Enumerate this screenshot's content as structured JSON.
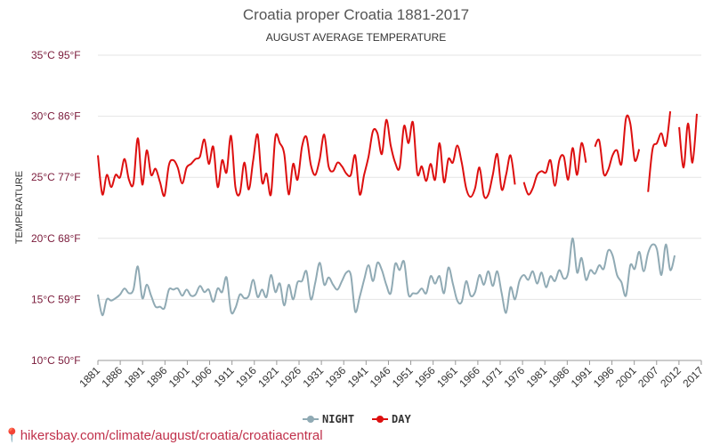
{
  "chart_data": {
    "type": "line",
    "title": "Croatia proper Croatia 1881-2017",
    "subtitle": "AUGUST AVERAGE TEMPERATURE",
    "ylabel": "TEMPERATURE",
    "ylim": [
      10,
      35
    ],
    "yticks": [
      {
        "value": 10,
        "label": "10°C 50°F"
      },
      {
        "value": 15,
        "label": "15°C 59°F"
      },
      {
        "value": 20,
        "label": "20°C 68°F"
      },
      {
        "value": 25,
        "label": "25°C 77°F"
      },
      {
        "value": 30,
        "label": "30°C 86°F"
      },
      {
        "value": 35,
        "label": "35°C 95°F"
      }
    ],
    "xlim": [
      1881,
      2017
    ],
    "xticks": [
      "1881",
      "1886",
      "1891",
      "1896",
      "1901",
      "1906",
      "1911",
      "1916",
      "1921",
      "1926",
      "1931",
      "1936",
      "1941",
      "1946",
      "1951",
      "1956",
      "1961",
      "1966",
      "1971",
      "1976",
      "1981",
      "1986",
      "1991",
      "1996",
      "2001",
      "2007",
      "2012",
      "2017"
    ],
    "series": [
      {
        "name": "NIGHT",
        "color": "#90aab4",
        "points": [
          [
            1881,
            15.4
          ],
          [
            1882,
            13.7
          ],
          [
            1883,
            15.0
          ],
          [
            1884,
            14.9
          ],
          [
            1885,
            15.1
          ],
          [
            1886,
            15.4
          ],
          [
            1887,
            15.9
          ],
          [
            1888,
            15.5
          ],
          [
            1889,
            15.8
          ],
          [
            1890,
            17.7
          ],
          [
            1891,
            15.1
          ],
          [
            1892,
            16.2
          ],
          [
            1893,
            15.3
          ],
          [
            1894,
            14.4
          ],
          [
            1895,
            14.4
          ],
          [
            1896,
            14.3
          ],
          [
            1897,
            15.8
          ],
          [
            1898,
            15.8
          ],
          [
            1899,
            15.9
          ],
          [
            1900,
            15.3
          ],
          [
            1901,
            15.8
          ],
          [
            1902,
            15.3
          ],
          [
            1903,
            15.4
          ],
          [
            1904,
            16.1
          ],
          [
            1905,
            15.6
          ],
          [
            1906,
            15.8
          ],
          [
            1907,
            14.8
          ],
          [
            1908,
            15.9
          ],
          [
            1909,
            15.6
          ],
          [
            1910,
            16.8
          ],
          [
            1911,
            14.0
          ],
          [
            1912,
            14.3
          ],
          [
            1913,
            15.4
          ],
          [
            1914,
            15.1
          ],
          [
            1915,
            15.3
          ],
          [
            1916,
            16.6
          ],
          [
            1917,
            15.2
          ],
          [
            1918,
            15.8
          ],
          [
            1919,
            15.2
          ],
          [
            1920,
            17.0
          ],
          [
            1921,
            15.6
          ],
          [
            1922,
            16.3
          ],
          [
            1923,
            14.5
          ],
          [
            1924,
            16.2
          ],
          [
            1925,
            15.0
          ],
          [
            1926,
            16.4
          ],
          [
            1927,
            16.5
          ],
          [
            1928,
            17.3
          ],
          [
            1929,
            15.0
          ],
          [
            1930,
            16.4
          ],
          [
            1931,
            18.0
          ],
          [
            1932,
            16.2
          ],
          [
            1933,
            16.8
          ],
          [
            1934,
            16.2
          ],
          [
            1935,
            15.8
          ],
          [
            1936,
            16.5
          ],
          [
            1937,
            17.2
          ],
          [
            1938,
            17.0
          ],
          [
            1939,
            14.0
          ],
          [
            1940,
            15.2
          ],
          [
            1941,
            16.6
          ],
          [
            1942,
            17.8
          ],
          [
            1943,
            16.5
          ],
          [
            1944,
            18.0
          ],
          [
            1945,
            17.4
          ],
          [
            1946,
            16.2
          ],
          [
            1947,
            15.5
          ],
          [
            1948,
            17.9
          ],
          [
            1949,
            17.4
          ],
          [
            1950,
            18.1
          ],
          [
            1951,
            15.4
          ],
          [
            1952,
            15.5
          ],
          [
            1953,
            15.5
          ],
          [
            1954,
            15.9
          ],
          [
            1955,
            15.5
          ],
          [
            1956,
            16.9
          ],
          [
            1957,
            16.3
          ],
          [
            1958,
            16.9
          ],
          [
            1959,
            15.5
          ],
          [
            1960,
            17.6
          ],
          [
            1961,
            16.3
          ],
          [
            1962,
            14.9
          ],
          [
            1963,
            14.8
          ],
          [
            1964,
            16.5
          ],
          [
            1965,
            15.3
          ],
          [
            1966,
            15.6
          ],
          [
            1967,
            17.0
          ],
          [
            1968,
            16.2
          ],
          [
            1969,
            17.3
          ],
          [
            1970,
            16.1
          ],
          [
            1971,
            17.3
          ],
          [
            1972,
            15.5
          ],
          [
            1973,
            13.9
          ],
          [
            1974,
            16.0
          ],
          [
            1975,
            15.0
          ],
          [
            1976,
            16.5
          ],
          [
            1977,
            17.0
          ],
          [
            1978,
            16.6
          ],
          [
            1979,
            17.3
          ],
          [
            1980,
            16.3
          ],
          [
            1981,
            17.2
          ],
          [
            1982,
            16.0
          ],
          [
            1983,
            16.9
          ],
          [
            1984,
            16.5
          ],
          [
            1985,
            17.4
          ],
          [
            1986,
            16.7
          ],
          [
            1987,
            17.2
          ],
          [
            1988,
            20.0
          ],
          [
            1989,
            17.2
          ],
          [
            1990,
            18.4
          ],
          [
            1991,
            16.6
          ],
          [
            1992,
            17.4
          ],
          [
            1993,
            17.1
          ],
          [
            1994,
            17.8
          ],
          [
            1995,
            17.5
          ],
          [
            1996,
            19.0
          ],
          [
            1997,
            18.6
          ],
          [
            1998,
            17.0
          ],
          [
            1999,
            16.4
          ],
          [
            2000,
            15.3
          ],
          [
            2001,
            17.8
          ],
          [
            2002,
            17.5
          ],
          [
            2003,
            18.9
          ],
          [
            2004,
            17.3
          ],
          [
            2005,
            18.8
          ],
          [
            2006,
            19.5
          ],
          [
            2007,
            19.1
          ],
          [
            2008,
            17.0
          ],
          [
            2009,
            19.5
          ],
          [
            2010,
            17.4
          ],
          [
            2011,
            18.6
          ]
        ]
      },
      {
        "name": "DAY",
        "color": "#dd0f0f",
        "points": [
          [
            1881,
            26.8
          ],
          [
            1882,
            23.6
          ],
          [
            1883,
            25.2
          ],
          [
            1884,
            24.2
          ],
          [
            1885,
            25.2
          ],
          [
            1886,
            25.0
          ],
          [
            1887,
            26.5
          ],
          [
            1888,
            24.8
          ],
          [
            1889,
            24.5
          ],
          [
            1890,
            28.2
          ],
          [
            1891,
            24.4
          ],
          [
            1892,
            27.2
          ],
          [
            1893,
            25.2
          ],
          [
            1894,
            25.7
          ],
          [
            1895,
            24.6
          ],
          [
            1896,
            23.5
          ],
          [
            1897,
            26.0
          ],
          [
            1898,
            26.4
          ],
          [
            1899,
            25.8
          ],
          [
            1900,
            24.5
          ],
          [
            1901,
            25.8
          ],
          [
            1902,
            26.1
          ],
          [
            1903,
            26.5
          ],
          [
            1904,
            26.7
          ],
          [
            1905,
            28.1
          ],
          [
            1906,
            26.1
          ],
          [
            1907,
            27.5
          ],
          [
            1908,
            24.2
          ],
          [
            1909,
            26.4
          ],
          [
            1910,
            25.4
          ],
          [
            1911,
            28.4
          ],
          [
            1912,
            24.2
          ],
          [
            1913,
            23.7
          ],
          [
            1914,
            26.2
          ],
          [
            1915,
            24.0
          ],
          [
            1916,
            26.4
          ],
          [
            1917,
            28.5
          ],
          [
            1918,
            24.6
          ],
          [
            1919,
            25.3
          ],
          [
            1920,
            23.6
          ],
          [
            1921,
            28.3
          ],
          [
            1922,
            27.8
          ],
          [
            1923,
            26.9
          ],
          [
            1924,
            23.6
          ],
          [
            1925,
            26.1
          ],
          [
            1926,
            24.8
          ],
          [
            1927,
            27.5
          ],
          [
            1928,
            28.3
          ],
          [
            1929,
            26.0
          ],
          [
            1930,
            25.2
          ],
          [
            1931,
            26.5
          ],
          [
            1932,
            28.5
          ],
          [
            1933,
            25.9
          ],
          [
            1934,
            25.5
          ],
          [
            1935,
            26.2
          ],
          [
            1936,
            25.9
          ],
          [
            1937,
            25.3
          ],
          [
            1938,
            25.2
          ],
          [
            1939,
            26.8
          ],
          [
            1940,
            23.6
          ],
          [
            1941,
            25.2
          ],
          [
            1942,
            26.7
          ],
          [
            1943,
            28.8
          ],
          [
            1944,
            28.6
          ],
          [
            1945,
            26.9
          ],
          [
            1946,
            29.7
          ],
          [
            1947,
            27.6
          ],
          [
            1948,
            26.2
          ],
          [
            1949,
            25.8
          ],
          [
            1950,
            29.2
          ],
          [
            1951,
            27.8
          ],
          [
            1952,
            29.5
          ],
          [
            1953,
            25.3
          ],
          [
            1954,
            25.9
          ],
          [
            1955,
            24.7
          ],
          [
            1956,
            26.1
          ],
          [
            1957,
            24.8
          ],
          [
            1958,
            27.8
          ],
          [
            1959,
            24.6
          ],
          [
            1960,
            26.5
          ],
          [
            1961,
            26.2
          ],
          [
            1962,
            27.6
          ],
          [
            1963,
            26.2
          ],
          [
            1964,
            24.1
          ],
          [
            1965,
            23.4
          ],
          [
            1966,
            24.1
          ],
          [
            1967,
            25.8
          ],
          [
            1968,
            23.5
          ],
          [
            1969,
            23.6
          ],
          [
            1970,
            25.2
          ],
          [
            1971,
            26.9
          ],
          [
            1972,
            24.0
          ],
          [
            1973,
            25.2
          ],
          [
            1974,
            26.8
          ],
          [
            1975,
            24.4
          ],
          [
            1976,
            null
          ],
          [
            1977,
            24.6
          ],
          [
            1978,
            23.6
          ],
          [
            1979,
            24.1
          ],
          [
            1980,
            25.2
          ],
          [
            1981,
            25.5
          ],
          [
            1982,
            25.4
          ],
          [
            1983,
            26.4
          ],
          [
            1984,
            24.3
          ],
          [
            1985,
            26.4
          ],
          [
            1986,
            26.7
          ],
          [
            1987,
            24.8
          ],
          [
            1988,
            27.4
          ],
          [
            1989,
            25.2
          ],
          [
            1990,
            27.8
          ],
          [
            1991,
            26.2
          ],
          [
            1992,
            null
          ],
          [
            1993,
            27.5
          ],
          [
            1994,
            28.0
          ],
          [
            1995,
            25.3
          ],
          [
            1996,
            25.6
          ],
          [
            1997,
            26.8
          ],
          [
            1998,
            27.2
          ],
          [
            1999,
            26.1
          ],
          [
            2000,
            29.8
          ],
          [
            2001,
            29.4
          ],
          [
            2002,
            26.4
          ],
          [
            2003,
            27.3
          ],
          [
            2004,
            null
          ],
          [
            2005,
            23.8
          ],
          [
            2006,
            27.3
          ],
          [
            2007,
            27.8
          ],
          [
            2008,
            28.6
          ],
          [
            2009,
            27.6
          ],
          [
            2010,
            30.4
          ],
          [
            2011,
            null
          ],
          [
            2012,
            29.1
          ],
          [
            2013,
            25.8
          ],
          [
            2014,
            29.4
          ],
          [
            2015,
            26.2
          ],
          [
            2016,
            30.2
          ]
        ]
      }
    ],
    "legend": "bottom-center"
  },
  "footer": {
    "pin_icon": "📍",
    "text": "hikersbay.com/climate/august/croatia/croatiacentral"
  }
}
